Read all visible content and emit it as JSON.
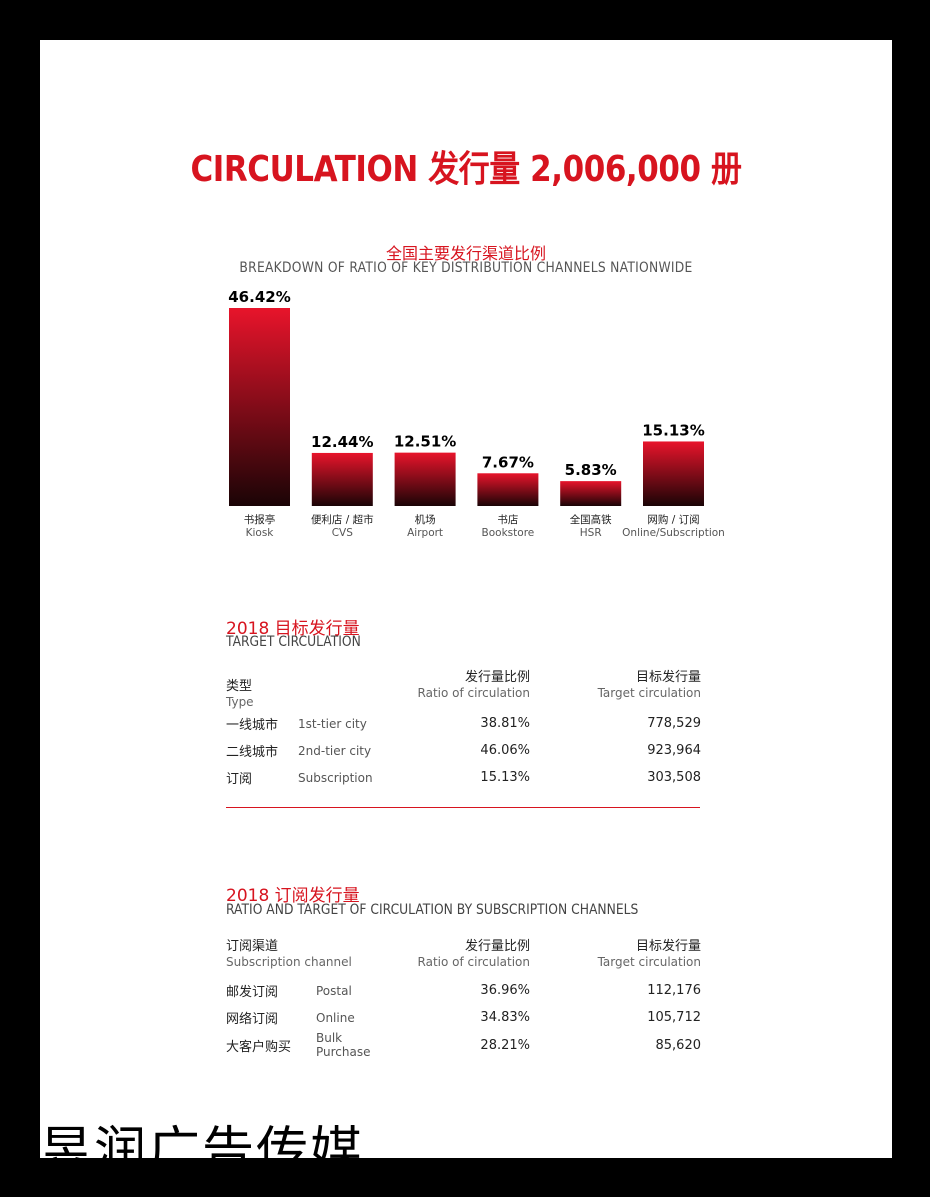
{
  "header": {
    "title": "CIRCULATION 发行量 2,006,000 册"
  },
  "chart_data": {
    "type": "bar",
    "title": "全国主要发行渠道比例",
    "subtitle": "BREAKDOWN OF RATIO OF KEY DISTRIBUTION CHANNELS NATIONWIDE",
    "categories": [
      "书报亭",
      "便利店 / 超市",
      "机场",
      "书店",
      "全国高铁",
      "网购 / 订阅"
    ],
    "categories_en": [
      "Kiosk",
      "CVS",
      "Airport",
      "Bookstore",
      "HSR",
      "Online/Subscription"
    ],
    "values": [
      46.42,
      12.44,
      12.51,
      7.67,
      5.83,
      15.13
    ],
    "value_labels": [
      "46.42%",
      "12.44%",
      "12.51%",
      "7.67%",
      "5.83%",
      "15.13%"
    ],
    "ylim": [
      0,
      46.42
    ],
    "grid": false,
    "colors": {
      "bar_top": "#e8142b",
      "bar_bottom": "#1a0406"
    }
  },
  "target": {
    "title_cn": "2018 目标发行量",
    "title_en": "TARGET CIRCULATION",
    "headers": {
      "type_cn": "类型",
      "type_en": "Type",
      "ratio_cn": "发行量比例",
      "ratio_en": "Ratio of circulation",
      "target_cn": "目标发行量",
      "target_en": "Target circulation"
    },
    "rows": [
      {
        "cn": "一线城市",
        "en": "1st-tier city",
        "ratio": "38.81%",
        "target": "778,529"
      },
      {
        "cn": "二线城市",
        "en": "2nd-tier city",
        "ratio": "46.06%",
        "target": "923,964"
      },
      {
        "cn": "订阅",
        "en": "Subscription",
        "ratio": "15.13%",
        "target": "303,508"
      }
    ]
  },
  "subscription": {
    "title_cn": "2018 订阅发行量",
    "title_en": "RATIO AND TARGET OF CIRCULATION BY SUBSCRIPTION CHANNELS",
    "headers": {
      "type_cn": "订阅渠道",
      "type_en": "Subscription channel",
      "ratio_cn": "发行量比例",
      "ratio_en": "Ratio of circulation",
      "target_cn": "目标发行量",
      "target_en": "Target circulation"
    },
    "rows": [
      {
        "cn": "邮发订阅",
        "en": "Postal",
        "ratio": "36.96%",
        "target": "112,176"
      },
      {
        "cn": "网络订阅",
        "en": "Online",
        "ratio": "34.83%",
        "target": "105,712"
      },
      {
        "cn": "大客户购买",
        "en": "Bulk Purchase",
        "ratio": "28.21%",
        "target": "85,620"
      }
    ]
  },
  "watermark": "昱润广告传媒",
  "colors": {
    "accent": "#d7141f",
    "frame": "#000000"
  }
}
